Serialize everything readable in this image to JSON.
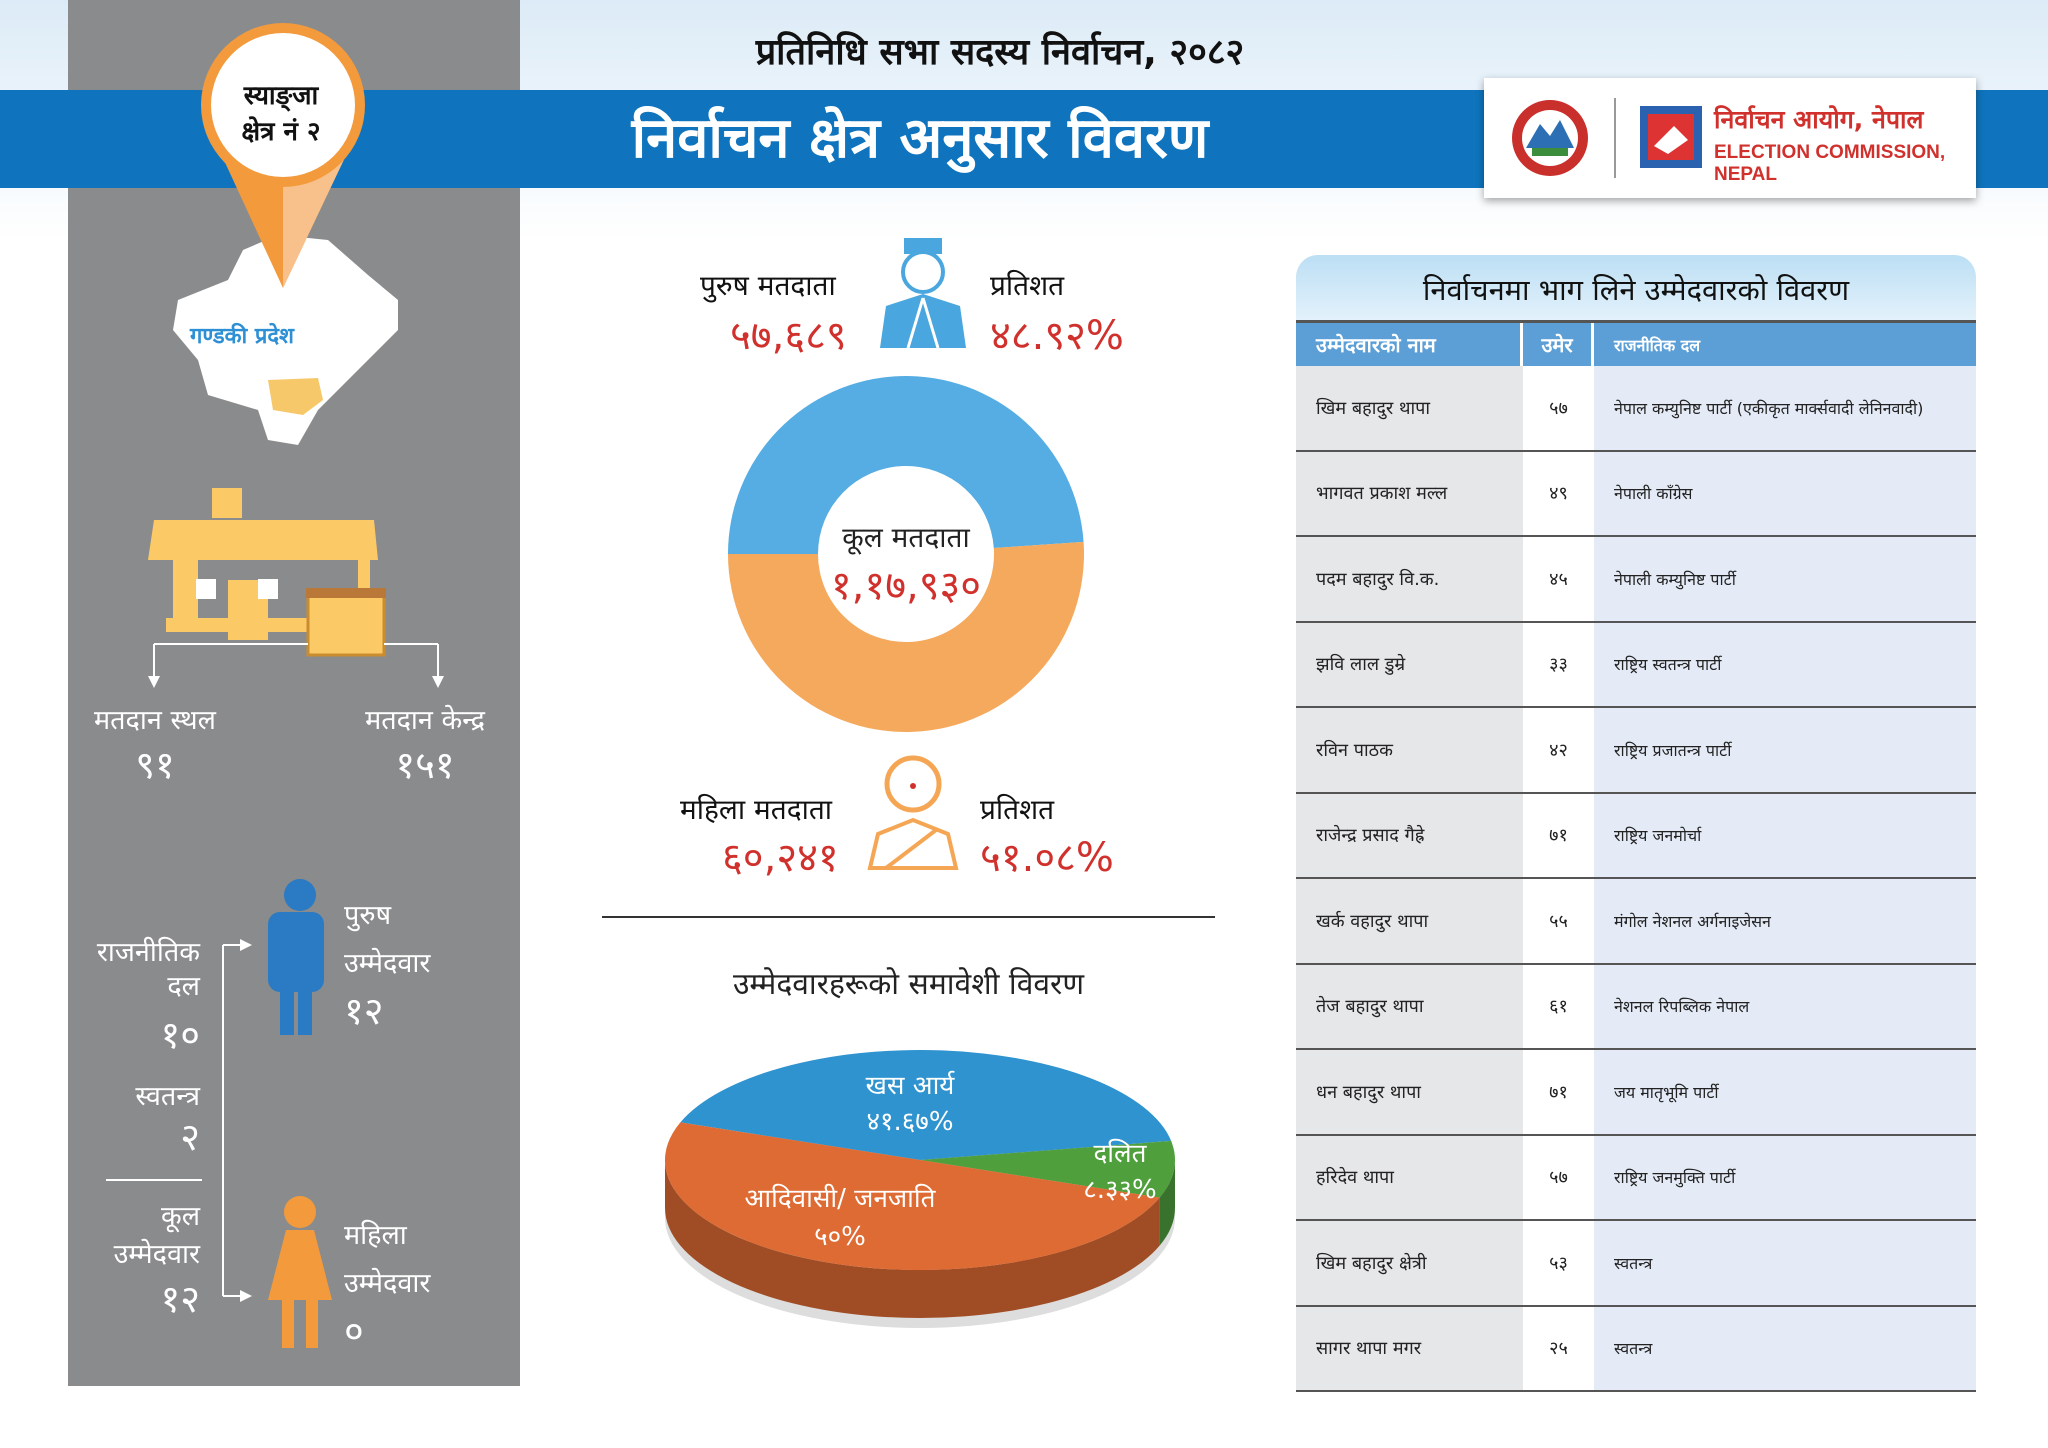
{
  "header": {
    "subtitle": "प्रतिनिधि सभा सदस्य निर्वाचन, २०८२",
    "title": "निर्वाचन क्षेत्र अनुसार विवरण",
    "logo_np": "निर्वाचन आयोग, नेपाल",
    "logo_en": "ELECTION COMMISSION, NEPAL"
  },
  "colors": {
    "band": "#0f74bd",
    "panel": "#8a8b8d",
    "male": "#4aa6de",
    "female": "#f5a654",
    "value": "#d0312d"
  },
  "left": {
    "constituency_line1": "स्याङ्जा",
    "constituency_line2": "क्षेत्र नं २",
    "province": "गण्डकी प्रदेश",
    "polling_place_label": "मतदान स्थल",
    "polling_place_value": "९१",
    "polling_center_label": "मतदान केन्द्र",
    "polling_center_value": "१५१",
    "party_label_1": "राजनीतिक",
    "party_label_2": "दल",
    "party_value": "१०",
    "independent_label": "स्वतन्त्र",
    "independent_value": "२",
    "total_label_1": "कूल",
    "total_label_2": "उम्मेदवार",
    "total_value": "१२",
    "male_cand_label_1": "पुरुष",
    "male_cand_label_2": "उम्मेदवार",
    "male_cand_value": "१२",
    "female_cand_label_1": "महिला",
    "female_cand_label_2": "उम्मेदवार",
    "female_cand_value": "०"
  },
  "voters": {
    "male_label": "पुरुष मतदाता",
    "male_value": "५७,६८९",
    "male_pct_label": "प्रतिशत",
    "male_pct": "४८.९२%",
    "female_label": "महिला मतदाता",
    "female_value": "६०,२४१",
    "female_pct_label": "प्रतिशत",
    "female_pct": "५१.०८%",
    "total_label": "कूल मतदाता",
    "total_value": "१,१७,९३०"
  },
  "inclusion_title": "उम्मेदवारहरूको समावेशी विवरण",
  "chart_data": [
    {
      "type": "pie",
      "variant": "donut",
      "series": [
        {
          "name": "पुरुष मतदाता",
          "value": 48.92,
          "color": "#55ade3"
        },
        {
          "name": "महिला मतदाता",
          "value": 51.08,
          "color": "#f5a95c"
        }
      ]
    },
    {
      "type": "pie",
      "variant": "3d",
      "title": "उम्मेदवारहरूको समावेशी विवरण",
      "series": [
        {
          "name": "खस आर्य",
          "label": "४१.६७%",
          "value": 41.67,
          "color": "#2e93cf"
        },
        {
          "name": "दलित",
          "label": "८.३३%",
          "value": 8.33,
          "color": "#4f9f3d"
        },
        {
          "name": "आदिवासी/ जनजाति",
          "label": "५०%",
          "value": 50,
          "color": "#de6b33"
        }
      ]
    }
  ],
  "table": {
    "title": "निर्वाचनमा भाग लिने उम्मेदवारको विवरण",
    "headers": [
      "उम्मेदवारको नाम",
      "उमेर",
      "राजनीतिक दल"
    ],
    "rows": [
      [
        "खिम बहादुर थापा",
        "५७",
        "नेपाल कम्युनिष्ट पार्टी (एकीकृत मार्क्सवादी लेनिनवादी)"
      ],
      [
        "भागवत प्रकाश मल्ल",
        "४९",
        "नेपाली काँग्रेस"
      ],
      [
        "पदम बहादुर वि.क.",
        "४५",
        "नेपाली कम्युनिष्ट पार्टी"
      ],
      [
        "झवि लाल डुम्रे",
        "३३",
        "राष्ट्रिय स्वतन्त्र पार्टी"
      ],
      [
        "रविन पाठक",
        "४२",
        "राष्ट्रिय प्रजातन्त्र पार्टी"
      ],
      [
        "राजेन्द्र प्रसाद गैह्रे",
        "७१",
        "राष्ट्रिय जनमोर्चा"
      ],
      [
        "खर्क वहादुर थापा",
        "५५",
        "मंगोल नेशनल अर्गनाइजेसन"
      ],
      [
        "तेज बहादुर थापा",
        "६१",
        "नेशनल रिपब्लिक नेपाल"
      ],
      [
        "धन बहादुर थापा",
        "७१",
        "जय मातृभूमि पार्टी"
      ],
      [
        "हरिदेव थापा",
        "५७",
        "राष्ट्रिय जनमुक्ति पार्टी"
      ],
      [
        "खिम बहादुर क्षेत्री",
        "५३",
        "स्वतन्त्र"
      ],
      [
        "सागर थापा मगर",
        "२५",
        "स्वतन्त्र"
      ]
    ]
  }
}
